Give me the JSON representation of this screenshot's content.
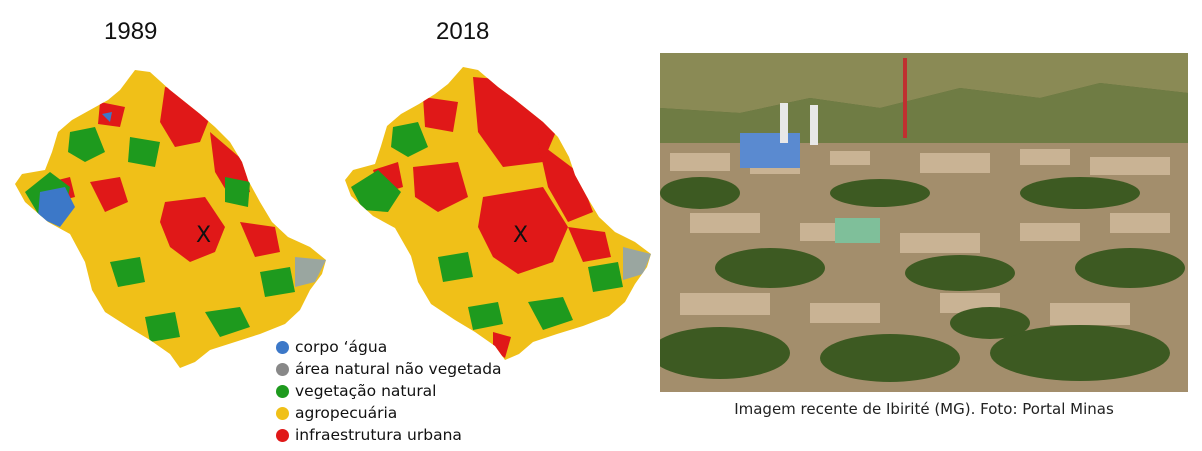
{
  "maps": [
    {
      "year": "1989",
      "marker": "X"
    },
    {
      "year": "2018",
      "marker": "X"
    }
  ],
  "legend": [
    {
      "label": "corpo ‘água",
      "color": "#3c78c8"
    },
    {
      "label": "área natural não vegetada",
      "color": "#888888"
    },
    {
      "label": "vegetação natural",
      "color": "#1e9a1e"
    },
    {
      "label": "agropecuária",
      "color": "#f0c018"
    },
    {
      "label": "infraestrutura urbana",
      "color": "#e01818"
    }
  ],
  "photo": {
    "caption": "Imagem recente de Ibirité (MG). Foto: Portal Minas"
  }
}
